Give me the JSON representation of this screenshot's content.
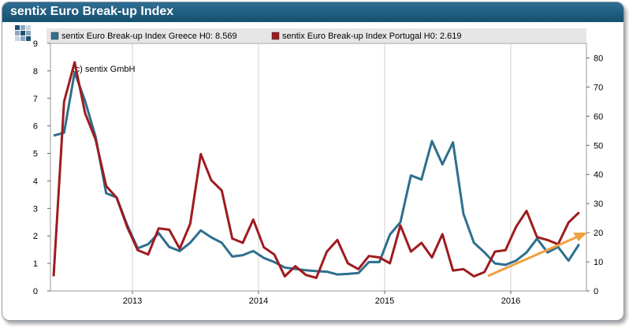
{
  "window": {
    "title": "sentix Euro Break-up Index"
  },
  "annotation": "(c) sentix GmbH",
  "colors": {
    "greece": "#2e6f8e",
    "portugal": "#9e1b1f",
    "arrow": "#f0a040",
    "titlebar": "#1d5a7d"
  },
  "chart_data": {
    "type": "line",
    "title": "sentix Euro Break-up Index",
    "x_ticks": [
      "2013",
      "2014",
      "2015",
      "2016"
    ],
    "x_tick_positions": [
      2013.0,
      2014.0,
      2015.0,
      2016.0
    ],
    "xlim": [
      2012.35,
      2016.6
    ],
    "left_axis": {
      "ylim": [
        0,
        9
      ],
      "ticks": [
        0,
        1,
        2,
        3,
        4,
        5,
        6,
        7,
        8,
        9
      ]
    },
    "right_axis": {
      "ylim": [
        0,
        85
      ],
      "ticks": [
        0,
        10,
        20,
        30,
        40,
        50,
        60,
        70,
        80
      ]
    },
    "grid": "vertical",
    "legend": "top",
    "series": [
      {
        "name": "sentix Euro Break-up Index Greece H0: 8.569",
        "axis": "left",
        "x": [
          2012.375,
          2012.458,
          2012.542,
          2012.625,
          2012.708,
          2012.792,
          2012.875,
          2012.958,
          2013.042,
          2013.125,
          2013.208,
          2013.292,
          2013.375,
          2013.458,
          2013.542,
          2013.625,
          2013.708,
          2013.792,
          2013.875,
          2013.958,
          2014.042,
          2014.125,
          2014.208,
          2014.292,
          2014.375,
          2014.458,
          2014.542,
          2014.625,
          2014.708,
          2014.792,
          2014.875,
          2014.958,
          2015.042,
          2015.125,
          2015.208,
          2015.292,
          2015.375,
          2015.458,
          2015.542,
          2015.625,
          2015.708,
          2015.792,
          2015.875,
          2015.958,
          2016.042,
          2016.125,
          2016.208,
          2016.292,
          2016.375,
          2016.458,
          2016.542
        ],
        "values": [
          5.65,
          5.75,
          7.95,
          6.9,
          5.6,
          3.55,
          3.4,
          2.4,
          1.55,
          1.7,
          2.1,
          1.6,
          1.45,
          1.75,
          2.2,
          1.95,
          1.75,
          1.25,
          1.3,
          1.45,
          1.2,
          1.05,
          0.85,
          0.8,
          0.75,
          0.72,
          0.7,
          0.6,
          0.62,
          0.65,
          1.05,
          1.05,
          2.05,
          2.5,
          4.2,
          4.05,
          5.45,
          4.6,
          5.4,
          2.8,
          1.75,
          1.4,
          1.0,
          0.95,
          1.1,
          1.4,
          1.9,
          1.4,
          1.6,
          1.1,
          1.7
        ]
      },
      {
        "name": "sentix Euro Break-up Index Portugal H0: 2.619",
        "axis": "right",
        "x": [
          2012.375,
          2012.458,
          2012.542,
          2012.625,
          2012.708,
          2012.792,
          2012.875,
          2012.958,
          2013.042,
          2013.125,
          2013.208,
          2013.292,
          2013.375,
          2013.458,
          2013.542,
          2013.625,
          2013.708,
          2013.792,
          2013.875,
          2013.958,
          2014.042,
          2014.125,
          2014.208,
          2014.292,
          2014.375,
          2014.458,
          2014.542,
          2014.625,
          2014.708,
          2014.792,
          2014.875,
          2014.958,
          2015.042,
          2015.125,
          2015.208,
          2015.292,
          2015.375,
          2015.458,
          2015.542,
          2015.625,
          2015.708,
          2015.792,
          2015.875,
          2015.958,
          2016.042,
          2016.125,
          2016.208,
          2016.292,
          2016.375,
          2016.458,
          2016.542
        ],
        "values": [
          5,
          65,
          78.5,
          61,
          52,
          36,
          32,
          22,
          14,
          12.5,
          21.5,
          21,
          14.5,
          23,
          47,
          38,
          34.5,
          18,
          16.5,
          24.5,
          15,
          12.5,
          5,
          8.5,
          5.5,
          4.5,
          13.5,
          17.5,
          9.5,
          7.5,
          12,
          11.5,
          9.5,
          22.5,
          13.5,
          16.5,
          11.5,
          19.5,
          7,
          7.5,
          5,
          6.5,
          13.5,
          14,
          22,
          27.5,
          18.5,
          17.5,
          16,
          23.5,
          27
        ]
      }
    ]
  }
}
